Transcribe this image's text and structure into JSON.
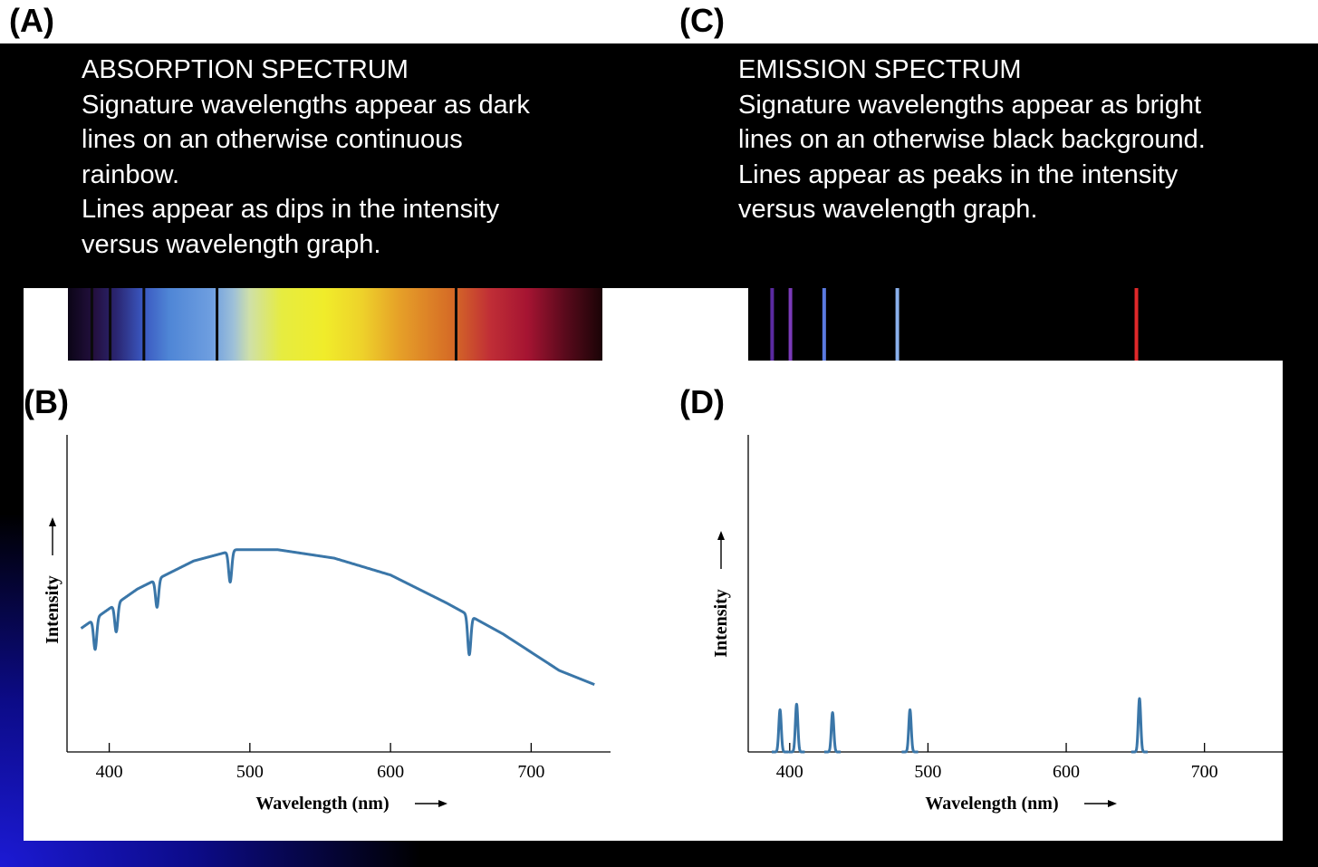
{
  "panels": {
    "a": "(A)",
    "b": "(B)",
    "c": "(C)",
    "d": "(D)"
  },
  "absorption_text": {
    "title": "ABSORPTION  SPECTRUM",
    "lines": [
      "Signature wavelengths appear as dark",
      "lines on an otherwise continuous",
      "rainbow.",
      "Lines appear as dips in the intensity",
      "versus wavelength graph."
    ]
  },
  "emission_text": {
    "title": "EMISSION SPECTRUM",
    "lines": [
      "Signature wavelengths appear as bright",
      "lines on an otherwise black background.",
      "Lines appear as peaks in the intensity",
      "versus wavelength graph."
    ]
  },
  "spectral_lines_nm": [
    397,
    410,
    434,
    486,
    656
  ],
  "colors": {
    "curve": "#3a76a8",
    "background": "#000000",
    "accent_blue": "#1c1ad4"
  },
  "chart_data": [
    {
      "type": "line",
      "panel": "(B)",
      "title": "",
      "xlabel": "Wavelength (nm)",
      "ylabel": "Intensity",
      "xlim": [
        370,
        750
      ],
      "ylim": [
        0,
        100
      ],
      "xticks": [
        400,
        500,
        600,
        700
      ],
      "xtick_labels": [
        "400",
        "500",
        "600",
        "700"
      ],
      "continuum": {
        "x": [
          380,
          420,
          460,
          490,
          520,
          560,
          600,
          640,
          680,
          720,
          745
        ],
        "y": [
          44,
          58,
          68,
          72,
          72,
          69,
          63,
          53,
          42,
          29,
          24
        ]
      },
      "absorption_dips": [
        {
          "x": 390,
          "depth": 11
        },
        {
          "x": 405,
          "depth": 10
        },
        {
          "x": 434,
          "depth": 10
        },
        {
          "x": 486,
          "depth": 11
        },
        {
          "x": 656,
          "depth": 14
        }
      ],
      "grid": false
    },
    {
      "type": "line",
      "panel": "(D)",
      "title": "",
      "xlabel": "Wavelength (nm)",
      "ylabel": "Intensity",
      "xlim": [
        370,
        750
      ],
      "ylim": [
        0,
        100
      ],
      "xticks": [
        400,
        500,
        600,
        700
      ],
      "xtick_labels": [
        "400",
        "500",
        "600",
        "700"
      ],
      "emission_peaks": [
        {
          "x": 393,
          "height": 15
        },
        {
          "x": 405,
          "height": 17
        },
        {
          "x": 431,
          "height": 14
        },
        {
          "x": 487,
          "height": 15
        },
        {
          "x": 653,
          "height": 19
        }
      ],
      "grid": false
    }
  ]
}
